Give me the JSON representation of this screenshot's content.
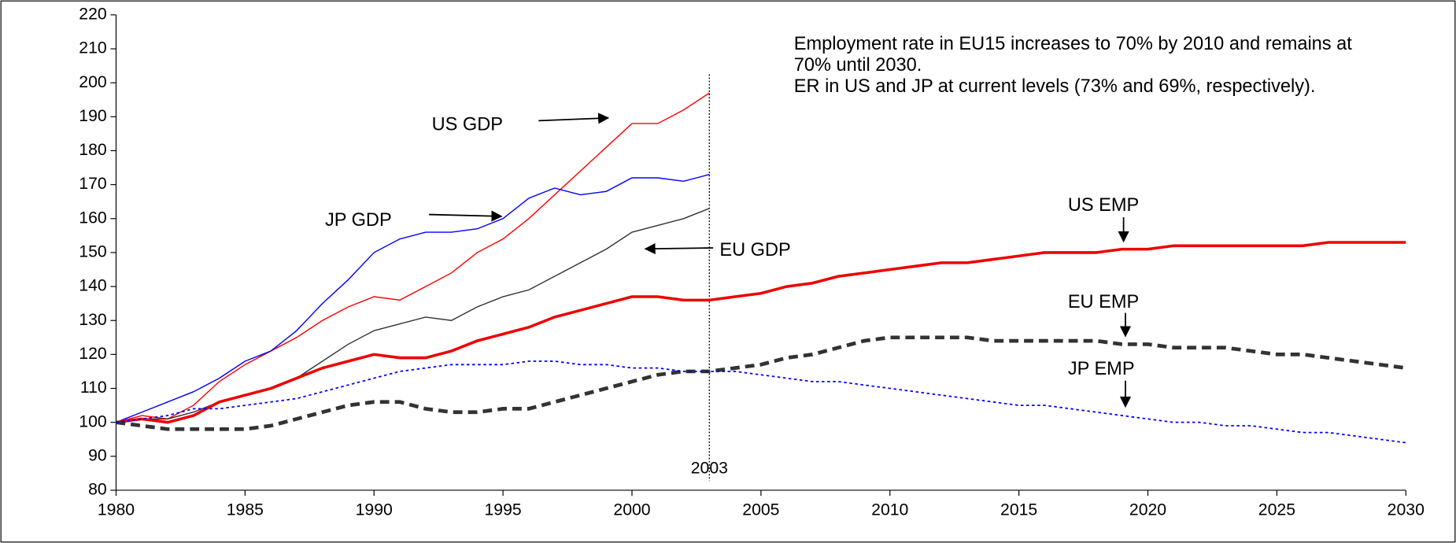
{
  "chart_data": {
    "type": "line",
    "x": [
      1980,
      1981,
      1982,
      1983,
      1984,
      1985,
      1986,
      1987,
      1988,
      1989,
      1990,
      1991,
      1992,
      1993,
      1994,
      1995,
      1996,
      1997,
      1998,
      1999,
      2000,
      2001,
      2002,
      2003,
      2004,
      2005,
      2006,
      2007,
      2008,
      2009,
      2010,
      2011,
      2012,
      2013,
      2014,
      2015,
      2016,
      2017,
      2018,
      2019,
      2020,
      2021,
      2022,
      2023,
      2024,
      2025,
      2026,
      2027,
      2028,
      2029,
      2030
    ],
    "series": [
      {
        "name": "US GDP",
        "color": "#ff0000",
        "width": 1.2,
        "style": "solid",
        "values": [
          100,
          102,
          101,
          105,
          112,
          117,
          121,
          125,
          130,
          134,
          137,
          136,
          140,
          144,
          150,
          154,
          160,
          167,
          174,
          181,
          188,
          188,
          192,
          197,
          null,
          null,
          null,
          null,
          null,
          null,
          null,
          null,
          null,
          null,
          null,
          null,
          null,
          null,
          null,
          null,
          null,
          null,
          null,
          null,
          null,
          null,
          null,
          null,
          null,
          null,
          null
        ]
      },
      {
        "name": "JP GDP",
        "color": "#0000ff",
        "width": 1.2,
        "style": "solid",
        "values": [
          100,
          103,
          106,
          109,
          113,
          118,
          121,
          127,
          135,
          142,
          150,
          154,
          156,
          156,
          157,
          160,
          166,
          169,
          167,
          168,
          172,
          172,
          171,
          173,
          null,
          null,
          null,
          null,
          null,
          null,
          null,
          null,
          null,
          null,
          null,
          null,
          null,
          null,
          null,
          null,
          null,
          null,
          null,
          null,
          null,
          null,
          null,
          null,
          null,
          null,
          null
        ]
      },
      {
        "name": "EU GDP",
        "color": "#333333",
        "width": 1.2,
        "style": "solid",
        "values": [
          100,
          101,
          101,
          103,
          106,
          108,
          110,
          113,
          118,
          123,
          127,
          129,
          131,
          130,
          134,
          137,
          139,
          143,
          147,
          151,
          156,
          158,
          160,
          163,
          null,
          null,
          null,
          null,
          null,
          null,
          null,
          null,
          null,
          null,
          null,
          null,
          null,
          null,
          null,
          null,
          null,
          null,
          null,
          null,
          null,
          null,
          null,
          null,
          null,
          null,
          null
        ]
      },
      {
        "name": "US EMP",
        "color": "#ee0000",
        "width": 3,
        "style": "solid",
        "values": [
          100,
          101,
          100,
          102,
          106,
          108,
          110,
          113,
          116,
          118,
          120,
          119,
          119,
          121,
          124,
          126,
          128,
          131,
          133,
          135,
          137,
          137,
          136,
          136,
          137,
          138,
          140,
          141,
          143,
          144,
          145,
          146,
          147,
          147,
          148,
          149,
          150,
          150,
          150,
          151,
          151,
          152,
          152,
          152,
          152,
          152,
          152,
          153,
          153,
          153,
          153
        ]
      },
      {
        "name": "EU EMP",
        "color": "#333333",
        "width": 4,
        "style": "dashed",
        "values": [
          100,
          99,
          98,
          98,
          98,
          98,
          99,
          101,
          103,
          105,
          106,
          106,
          104,
          103,
          103,
          104,
          104,
          106,
          108,
          110,
          112,
          114,
          115,
          115,
          116,
          117,
          119,
          120,
          122,
          124,
          125,
          125,
          125,
          125,
          124,
          124,
          124,
          124,
          124,
          123,
          123,
          122,
          122,
          122,
          121,
          120,
          120,
          119,
          118,
          117,
          116
        ]
      },
      {
        "name": "JP EMP",
        "color": "#0000ff",
        "width": 1.5,
        "style": "dotted",
        "values": [
          100,
          101,
          102,
          104,
          104,
          105,
          106,
          107,
          109,
          111,
          113,
          115,
          116,
          117,
          117,
          117,
          118,
          118,
          117,
          117,
          116,
          116,
          115,
          115,
          115,
          114,
          113,
          112,
          112,
          111,
          110,
          109,
          108,
          107,
          106,
          105,
          105,
          104,
          103,
          102,
          101,
          100,
          100,
          99,
          99,
          98,
          97,
          97,
          96,
          95,
          94
        ]
      }
    ],
    "xlim": [
      1980,
      2030
    ],
    "xticks": [
      1980,
      1985,
      1990,
      1995,
      2000,
      2005,
      2010,
      2015,
      2020,
      2025,
      2030
    ],
    "ylim": [
      80,
      220
    ],
    "yticks": [
      80,
      90,
      100,
      110,
      120,
      130,
      140,
      150,
      160,
      170,
      180,
      190,
      200,
      210,
      220
    ],
    "marker": {
      "x": 2003
    },
    "note": [
      "Employment rate in EU15 increases to 70% by 2010 and remains at",
      "70% until 2030.",
      "ER in US and JP at current levels (73% and 69%, respectively)."
    ]
  }
}
